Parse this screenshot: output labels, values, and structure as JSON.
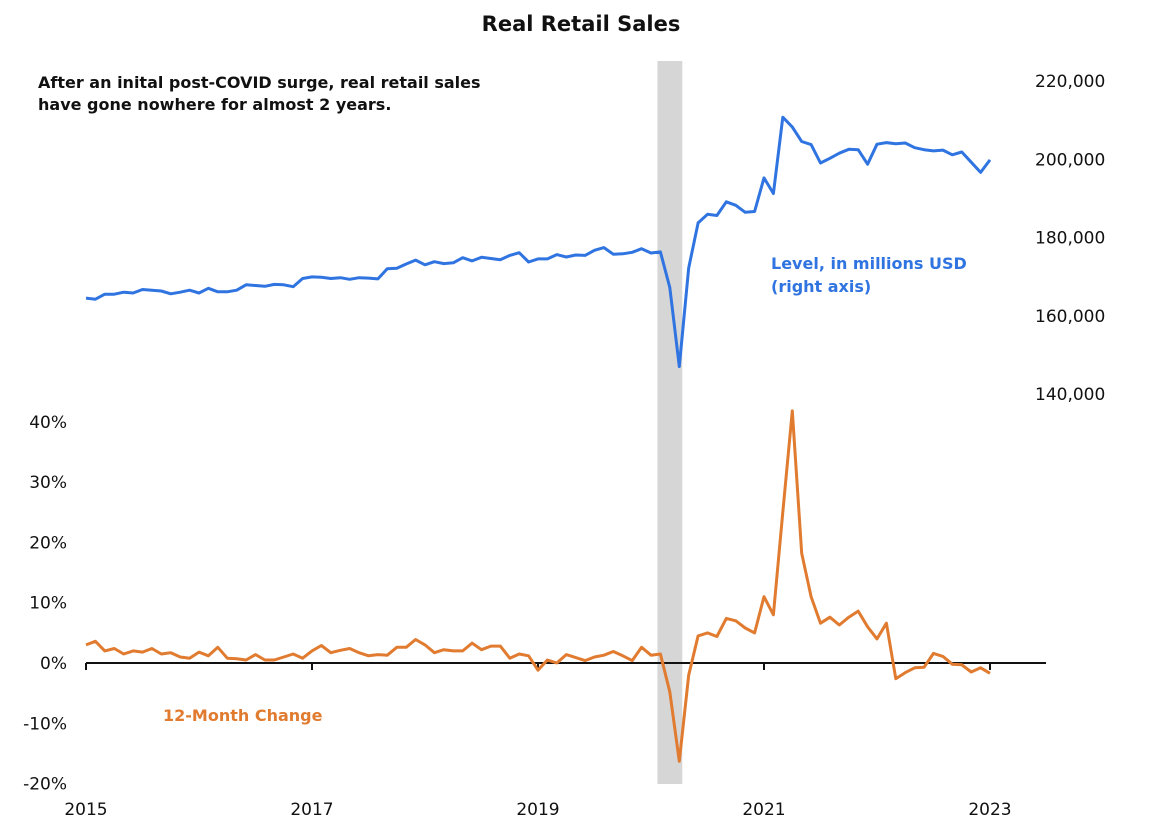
{
  "chart_data": {
    "type": "line",
    "title": "Real Retail Sales",
    "annotation": [
      "After an inital post-COVID surge, real retail sales",
      "have gone nowhere for almost 2 years."
    ],
    "x_start": "2015-01",
    "frequency": "monthly",
    "x_tick_labels": [
      "2015",
      "2017",
      "2019",
      "2021",
      "2023"
    ],
    "left_axis": {
      "ylim": [
        -20,
        40
      ],
      "tick_labels": [
        "40%",
        "30%",
        "20%",
        "10%",
        "0%",
        "-10%",
        "-20%"
      ],
      "tick_values": [
        40,
        30,
        20,
        10,
        0,
        -10,
        -20
      ]
    },
    "right_axis": {
      "ylim": [
        140000,
        220000
      ],
      "tick_labels": [
        "220,000",
        "200,000",
        "180,000",
        "160,000",
        "140,000"
      ],
      "tick_values": [
        220000,
        200000,
        180000,
        160000,
        140000
      ]
    },
    "recession_shading": {
      "start": "2020-02",
      "end": "2020-04"
    },
    "series": [
      {
        "name": "Level, in millions USD (right axis)",
        "label_lines": [
          "Level, in millions USD",
          "(right axis)"
        ],
        "axis": "right",
        "color": "#2f74e0",
        "values": [
          164300,
          164000,
          165300,
          165300,
          165800,
          165600,
          166500,
          166300,
          166100,
          165400,
          165800,
          166300,
          165600,
          166800,
          165900,
          165900,
          166300,
          167700,
          167500,
          167300,
          167800,
          167700,
          167200,
          169300,
          169700,
          169600,
          169300,
          169500,
          169100,
          169500,
          169400,
          169200,
          171800,
          171900,
          173000,
          174000,
          172800,
          173600,
          173100,
          173300,
          174600,
          173800,
          174700,
          174400,
          174100,
          175200,
          175900,
          173500,
          174300,
          174300,
          175400,
          174800,
          175300,
          175200,
          176500,
          177200,
          175500,
          175600,
          176000,
          176900,
          175800,
          176100,
          167000,
          146800,
          172000,
          183500,
          185700,
          185400,
          188900,
          188000,
          186200,
          186400,
          195000,
          191000,
          210500,
          208000,
          204300,
          203500,
          198800,
          200000,
          201300,
          202300,
          202200,
          198500,
          203600,
          204000,
          203700,
          203900,
          202700,
          202200,
          201900,
          202100,
          200900,
          201600,
          199000,
          196400,
          199600
        ]
      },
      {
        "name": "12-Month Change",
        "label_lines": [
          "12-Month Change"
        ],
        "axis": "left",
        "color": "#e07b30",
        "values": [
          3.0,
          3.6,
          2.0,
          2.4,
          1.5,
          2.0,
          1.8,
          2.4,
          1.5,
          1.7,
          1.0,
          0.8,
          1.8,
          1.2,
          2.6,
          0.8,
          0.7,
          0.5,
          1.4,
          0.5,
          0.5,
          1.0,
          1.5,
          0.8,
          2.0,
          2.9,
          1.7,
          2.1,
          2.4,
          1.7,
          1.2,
          1.4,
          1.3,
          2.6,
          2.6,
          3.9,
          3.0,
          1.7,
          2.2,
          2.0,
          2.0,
          3.3,
          2.2,
          2.8,
          2.8,
          0.8,
          1.5,
          1.2,
          -1.2,
          0.5,
          0.0,
          1.4,
          0.9,
          0.4,
          1.0,
          1.3,
          1.9,
          1.2,
          0.4,
          2.6,
          1.3,
          1.5,
          -4.8,
          -16.3,
          -2.0,
          4.5,
          5.0,
          4.4,
          7.4,
          7.0,
          5.8,
          5.0,
          11.0,
          8.0,
          25.0,
          41.8,
          18.2,
          11.0,
          6.6,
          7.6,
          6.3,
          7.6,
          8.6,
          6.0,
          4.0,
          6.6,
          -2.6,
          -1.6,
          -0.8,
          -0.7,
          1.6,
          1.1,
          -0.2,
          -0.3,
          -1.5,
          -0.8,
          -1.7
        ]
      }
    ]
  }
}
